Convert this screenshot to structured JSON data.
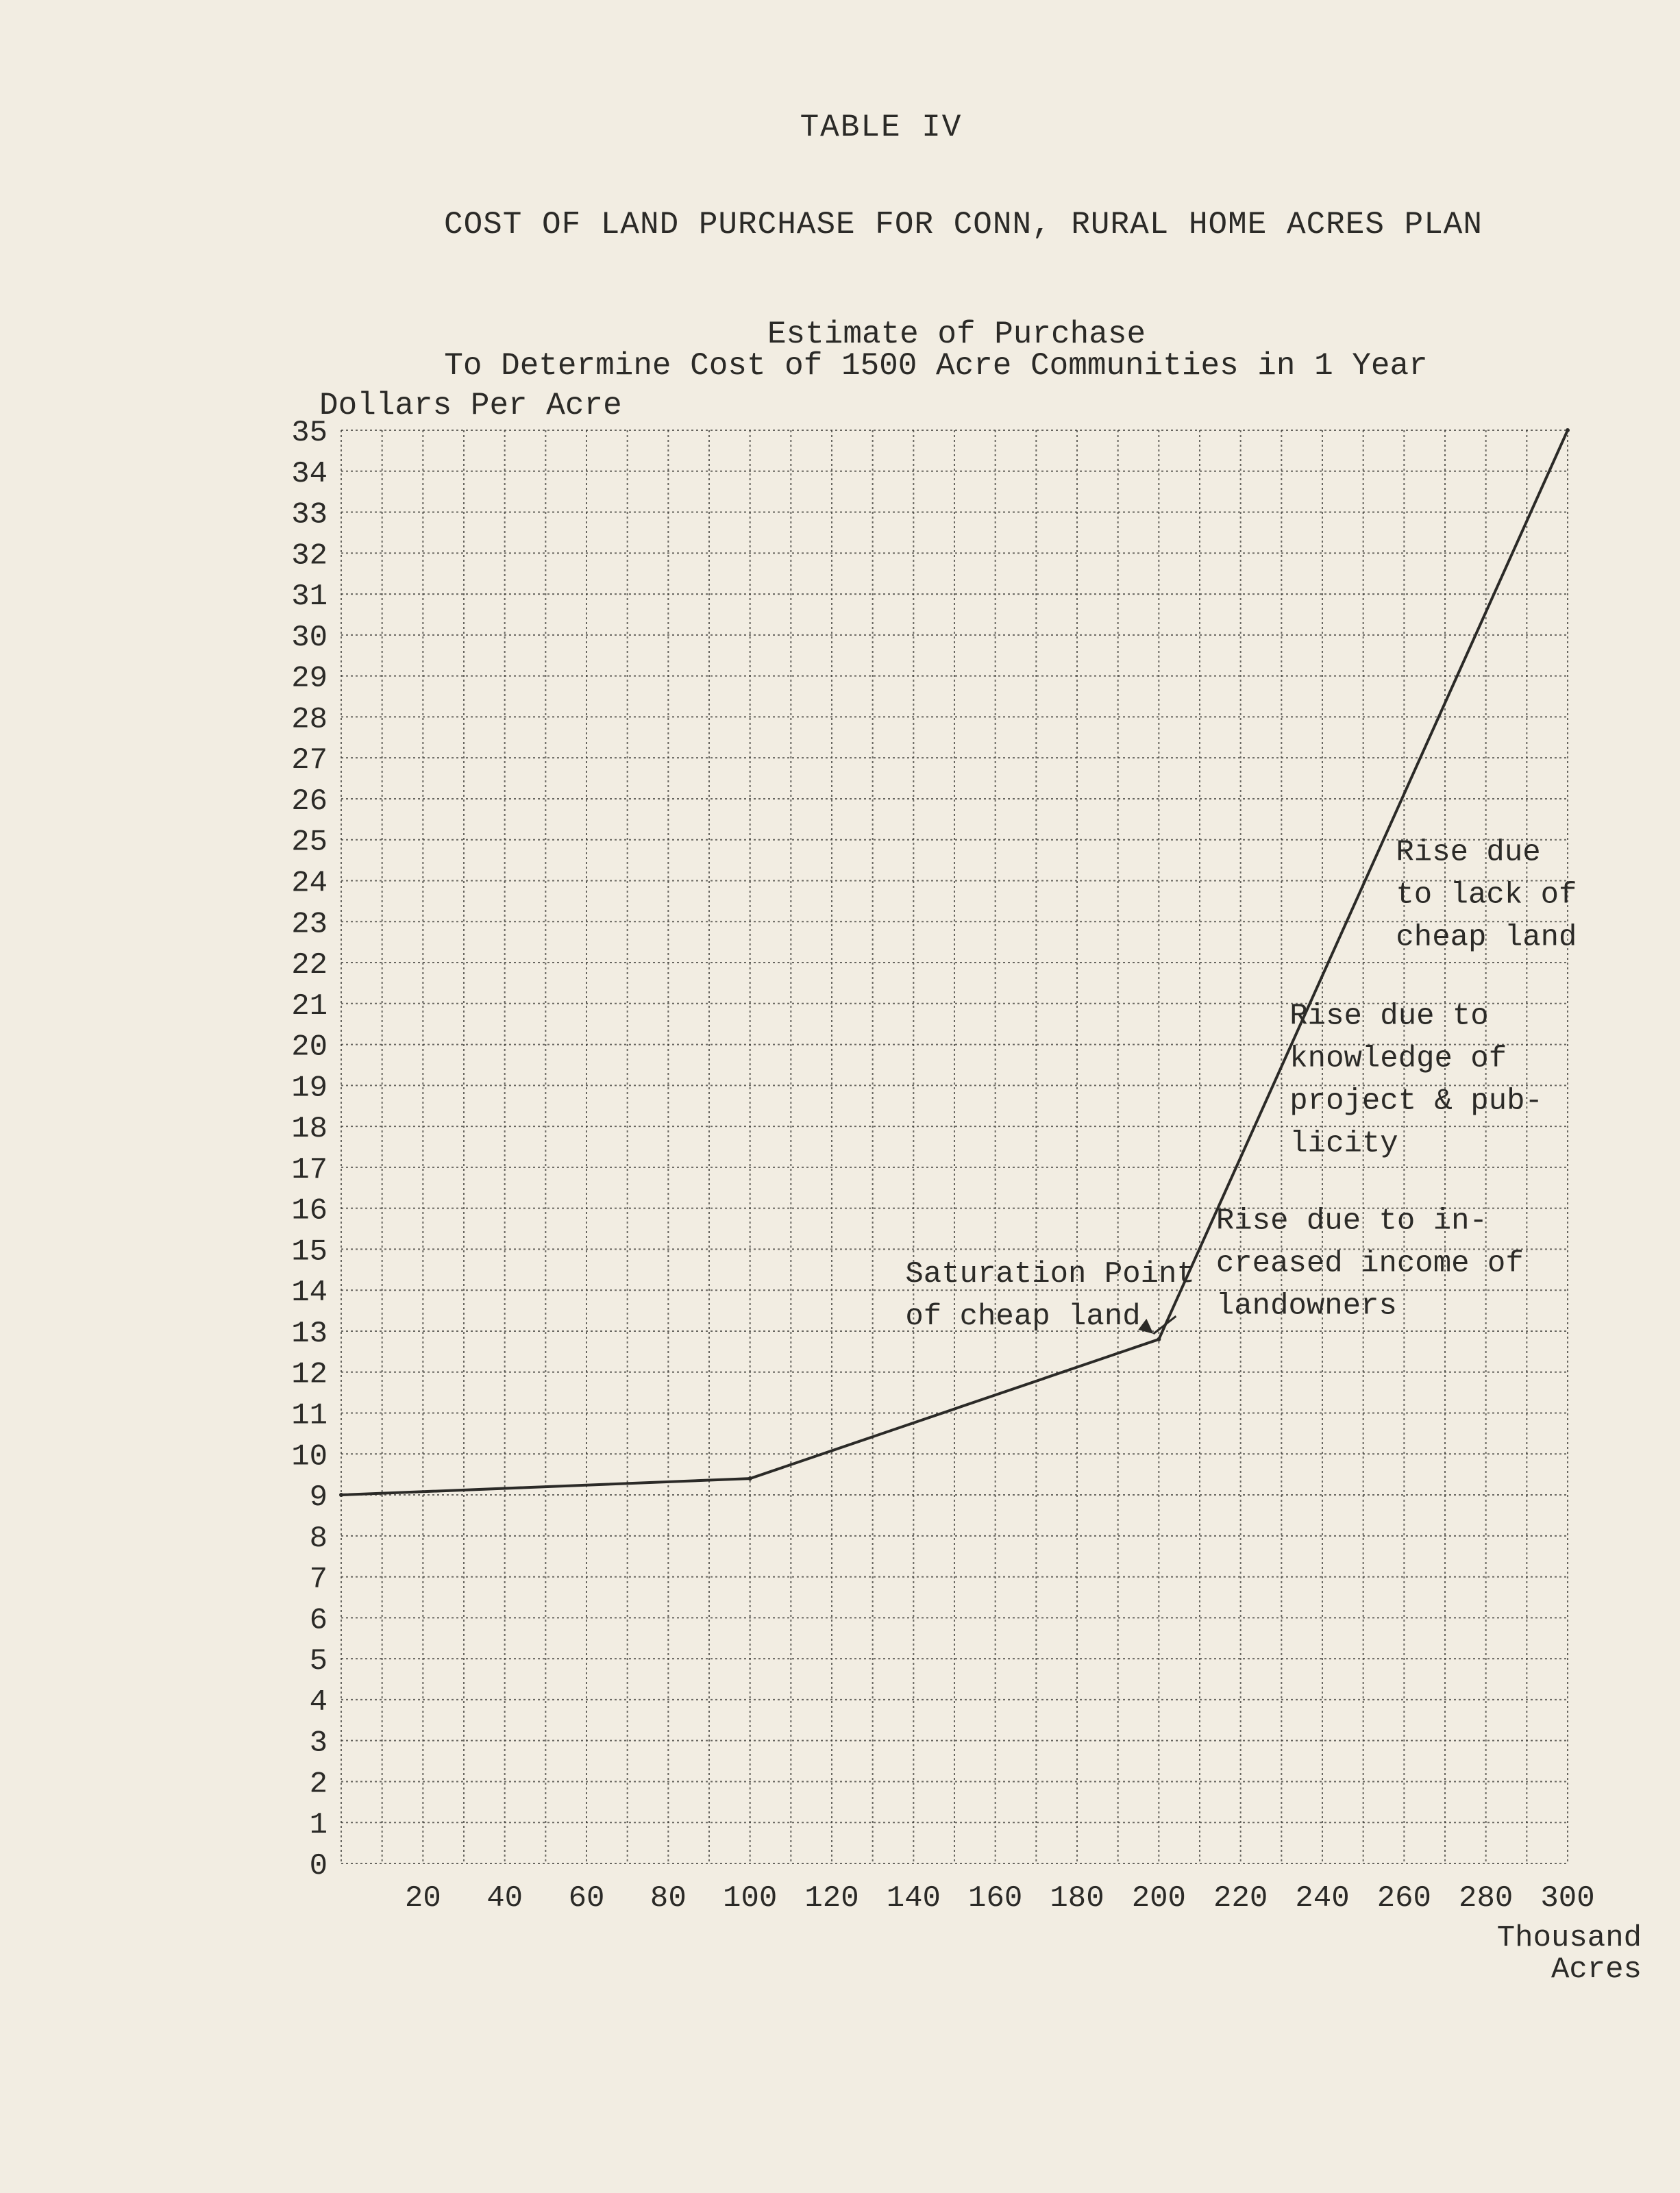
{
  "header": {
    "table_label": "TABLE IV",
    "page_title": "COST OF LAND PURCHASE FOR CONN, RURAL HOME ACRES PLAN"
  },
  "chart_data": {
    "type": "line",
    "title": "Estimate of Purchase",
    "subtitle": "To Determine Cost of 1500 Acre Communities in 1 Year",
    "ylabel": "Dollars Per Acre",
    "xlabel": [
      "Thousand",
      "Acres"
    ],
    "xlim": [
      0,
      300
    ],
    "ylim": [
      0,
      35
    ],
    "x_ticks": [
      20,
      40,
      60,
      80,
      100,
      120,
      140,
      160,
      180,
      200,
      220,
      240,
      260,
      280,
      300
    ],
    "y_ticks": [
      0,
      1,
      2,
      3,
      4,
      5,
      6,
      7,
      8,
      9,
      10,
      11,
      12,
      13,
      14,
      15,
      16,
      17,
      18,
      19,
      20,
      21,
      22,
      23,
      24,
      25,
      26,
      27,
      28,
      29,
      30,
      31,
      32,
      33,
      34,
      35
    ],
    "grid": true,
    "series": [
      {
        "x": [
          0,
          100,
          200,
          300
        ],
        "y": [
          9,
          9.4,
          12.8,
          35
        ]
      }
    ],
    "annotations": [
      {
        "lines": [
          "Saturation Point",
          "of cheap land"
        ],
        "x": 138,
        "y": 14.2,
        "arrow_to": [
          200,
          12.8
        ]
      },
      {
        "lines": [
          "Rise due to in-",
          "creased income of",
          "landowners"
        ],
        "x": 214,
        "y": 15.5
      },
      {
        "lines": [
          "Rise due to",
          "knowledge of",
          "project & pub-",
          "licity"
        ],
        "x": 232,
        "y": 20.5
      },
      {
        "lines": [
          "Rise due",
          "to lack of",
          "cheap land"
        ],
        "x": 258,
        "y": 24.5
      }
    ]
  }
}
